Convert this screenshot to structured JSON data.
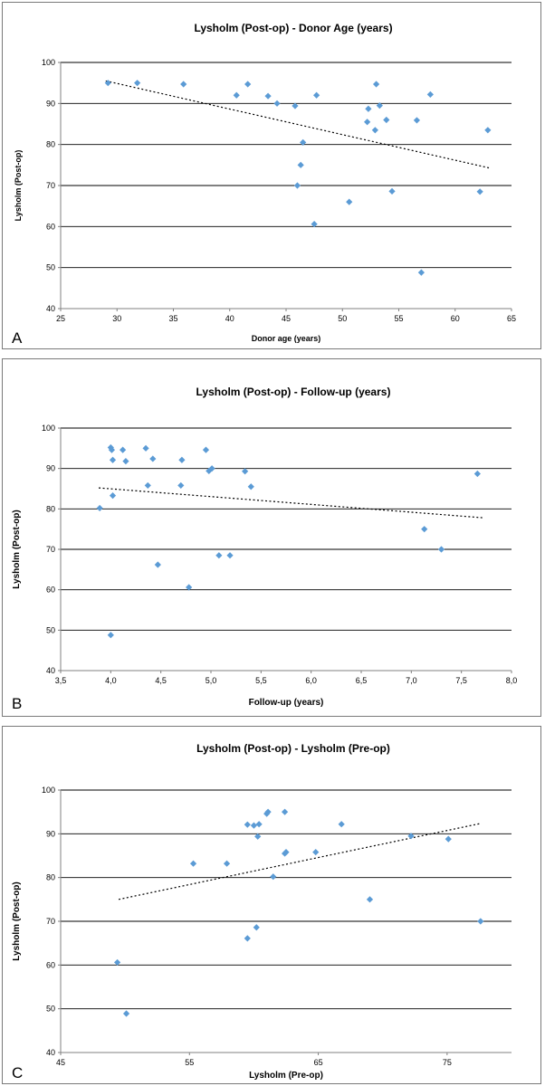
{
  "chart_data": [
    {
      "panel_label": "A",
      "type": "scatter",
      "title": "Lysholm (Post-op) - Donor Age (years)",
      "xlabel": "Donor age (years)",
      "ylabel": "Lysholm (Post-op)",
      "xlim": [
        25,
        65
      ],
      "ylim": [
        40,
        100
      ],
      "xticks": [
        25,
        30,
        35,
        40,
        45,
        50,
        55,
        60,
        65
      ],
      "yticks": [
        40,
        50,
        60,
        70,
        80,
        90,
        100
      ],
      "grid": "horizontal",
      "legend": "none",
      "trendline": {
        "style": "dotted linear",
        "x": [
          29,
          63
        ],
        "y": [
          95.5,
          74.3
        ]
      },
      "marker_color": "#5b9bd5",
      "x": [
        29.2,
        31.8,
        35.9,
        40.6,
        41.6,
        43.4,
        44.2,
        45.8,
        46.0,
        46.3,
        46.5,
        47.5,
        47.7,
        50.6,
        52.2,
        52.3,
        52.9,
        53.0,
        53.3,
        53.9,
        54.4,
        56.6,
        57.0,
        57.8,
        62.2,
        62.9
      ],
      "y": [
        95,
        95,
        94.7,
        92,
        94.7,
        91.8,
        90,
        89.4,
        70,
        75,
        80.5,
        60.6,
        92,
        66,
        85.5,
        88.7,
        83.5,
        94.7,
        89.5,
        86,
        68.6,
        85.9,
        48.8,
        92.2,
        68.5,
        83.5
      ]
    },
    {
      "panel_label": "B",
      "type": "scatter",
      "title": "Lysholm (Post-op) - Follow-up (years)",
      "xlabel": "Follow-up (years)",
      "ylabel": "Lysholm (Post-op)",
      "xlim": [
        3.5,
        8.0
      ],
      "ylim": [
        40,
        100
      ],
      "xticks": [
        "3,5",
        "4,0",
        "4,5",
        "5,0",
        "5,5",
        "6,0",
        "6,5",
        "7,0",
        "7,5",
        "8,0"
      ],
      "yticks": [
        40,
        50,
        60,
        70,
        80,
        90,
        100
      ],
      "grid": "horizontal",
      "legend": "none",
      "trendline": {
        "style": "dotted linear",
        "x": [
          3.88,
          7.72
        ],
        "y": [
          85.2,
          77.8
        ]
      },
      "marker_color": "#5b9bd5",
      "x": [
        3.89,
        4.0,
        4.01,
        4.02,
        4.02,
        4.0,
        4.12,
        4.15,
        4.35,
        4.37,
        4.42,
        4.47,
        4.7,
        4.71,
        4.78,
        4.95,
        4.98,
        5.01,
        5.08,
        5.19,
        5.34,
        5.4,
        7.13,
        7.3,
        7.66
      ],
      "y": [
        80.2,
        95.2,
        94.6,
        92.1,
        83.3,
        48.8,
        94.6,
        91.8,
        95,
        85.8,
        92.4,
        66.2,
        85.8,
        92.1,
        60.6,
        94.6,
        89.4,
        90,
        68.5,
        68.5,
        89.3,
        85.5,
        75,
        70,
        88.7
      ]
    },
    {
      "panel_label": "C",
      "type": "scatter",
      "title": "Lysholm (Post-op) - Lysholm (Pre-op)",
      "xlabel": "Lysholm (Pre-op)",
      "ylabel": "Lysholm (Post-op)",
      "xlim": [
        45,
        80
      ],
      "ylim": [
        40,
        100
      ],
      "xticks": [
        45,
        55,
        65,
        75
      ],
      "yticks": [
        40,
        50,
        60,
        70,
        80,
        90,
        100
      ],
      "grid": "horizontal",
      "legend": "none",
      "trendline": {
        "style": "dotted linear",
        "x": [
          49.5,
          77.5
        ],
        "y": [
          75,
          92.3
        ]
      },
      "marker_color": "#5b9bd5",
      "x": [
        49.4,
        50.1,
        55.3,
        57.9,
        59.5,
        59.5,
        60.0,
        60.2,
        60.3,
        60.4,
        61.0,
        61.1,
        61.5,
        62.4,
        62.5,
        62.4,
        64.8,
        66.8,
        69.0,
        72.2,
        75.1,
        77.6
      ],
      "y": [
        60.6,
        48.9,
        83.2,
        83.2,
        92.1,
        66.1,
        91.9,
        68.6,
        89.4,
        92.2,
        94.6,
        95,
        80.2,
        95,
        85.8,
        85.5,
        85.8,
        92.2,
        75,
        89.5,
        88.8,
        70
      ]
    }
  ]
}
